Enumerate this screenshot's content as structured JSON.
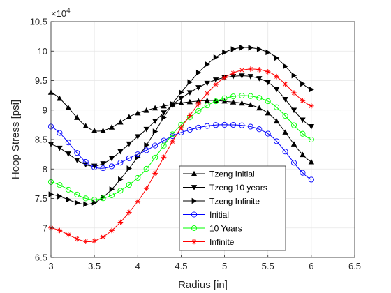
{
  "chart_data": {
    "type": "line",
    "xlabel": "Radius [in]",
    "ylabel": "Hoop Stress [psi]",
    "y_exponent_label": "×10",
    "y_exponent_power": "4",
    "xlim": [
      3,
      6.5
    ],
    "ylim": [
      6.5,
      10.5
    ],
    "x_ticks": [
      "3",
      "3.5",
      "4",
      "4.5",
      "5",
      "5.5",
      "6",
      "6.5"
    ],
    "y_ticks": [
      "6.5",
      "7",
      "7.5",
      "8",
      "8.5",
      "9",
      "9.5",
      "10",
      "10.5"
    ],
    "grid": true,
    "legend_position": "bottom-center",
    "series": [
      {
        "name": "Tzeng Initial",
        "color": "#000000",
        "marker": "triangle-up",
        "x": [
          3,
          3.5,
          4,
          4.5,
          5,
          5.5,
          6
        ],
        "y": [
          9.3,
          8.65,
          8.95,
          9.12,
          9.15,
          8.95,
          8.12
        ]
      },
      {
        "name": "Tzeng 10 years",
        "color": "#000000",
        "marker": "triangle-down",
        "x": [
          3,
          3.5,
          4,
          4.5,
          5,
          5.5,
          6
        ],
        "y": [
          8.42,
          8.05,
          8.55,
          9.2,
          9.55,
          9.47,
          8.72
        ]
      },
      {
        "name": "Tzeng Infinite",
        "color": "#000000",
        "marker": "triangle-right",
        "x": [
          3,
          3.5,
          4,
          4.5,
          5,
          5.5,
          6
        ],
        "y": [
          7.57,
          7.43,
          8.2,
          9.3,
          9.98,
          9.98,
          9.35
        ]
      },
      {
        "name": "Initial",
        "color": "#0000ff",
        "marker": "circle",
        "x": [
          3,
          3.5,
          4,
          4.5,
          5,
          5.5,
          6
        ],
        "y": [
          8.72,
          8.03,
          8.25,
          8.62,
          8.75,
          8.6,
          7.82
        ]
      },
      {
        "name": "10 Years",
        "color": "#00ff00",
        "marker": "circle",
        "x": [
          3,
          3.5,
          4,
          4.5,
          5,
          5.5,
          6
        ],
        "y": [
          7.78,
          7.48,
          7.85,
          8.75,
          9.2,
          9.15,
          8.5
        ]
      },
      {
        "name": "Infinite",
        "color": "#ff0000",
        "marker": "asterisk",
        "x": [
          3,
          3.5,
          4,
          4.5,
          5,
          5.5,
          6
        ],
        "y": [
          7.0,
          6.78,
          7.45,
          8.7,
          9.55,
          9.65,
          9.07
        ]
      }
    ]
  }
}
